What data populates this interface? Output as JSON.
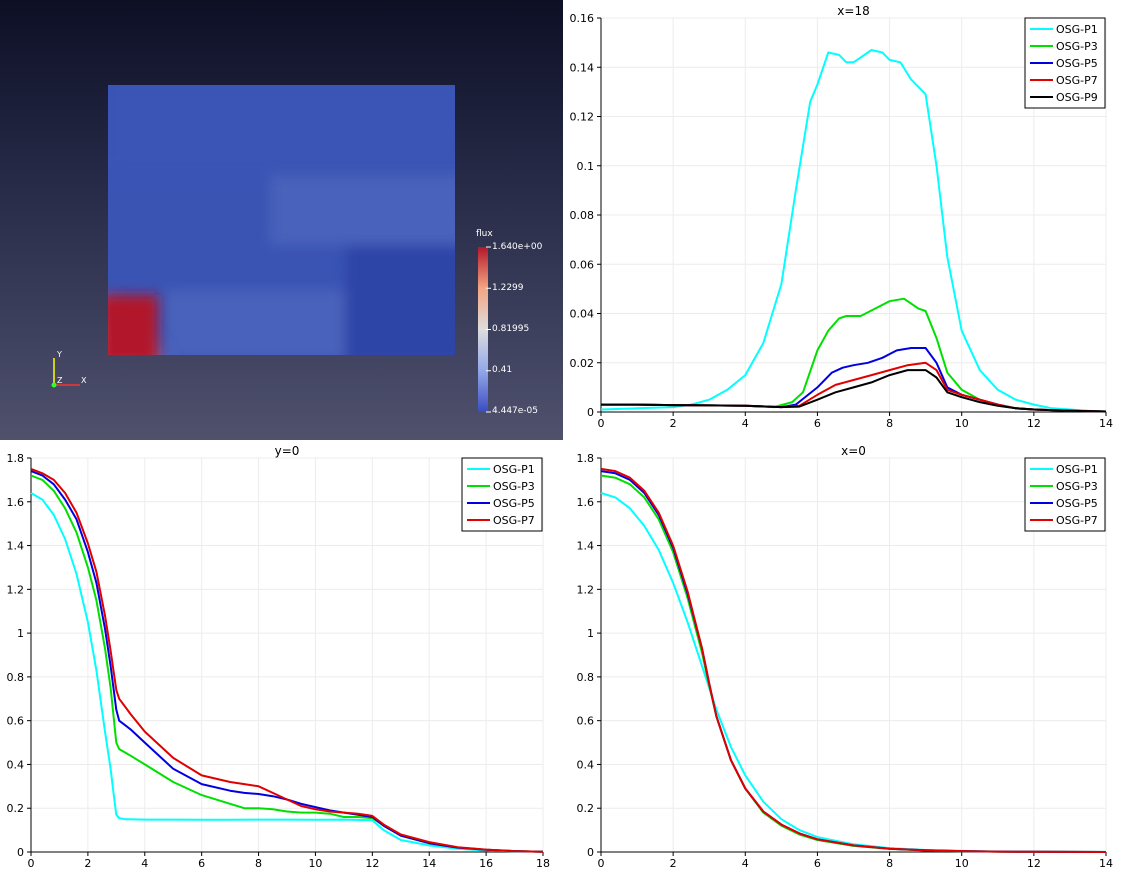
{
  "viewport": {
    "colorbar": {
      "title": "flux",
      "labels": [
        "1.640e+00",
        "1.2299",
        "0.81995",
        "0.41",
        "4.447e-05"
      ],
      "colors": [
        "#b2182b",
        "#f4a582",
        "#dddddd",
        "#92a8e8",
        "#3b4cc0"
      ]
    },
    "axes": {
      "y": "Y",
      "z": "Z",
      "x": "X"
    },
    "field": {
      "background": "#3a54b4",
      "colors": {
        "mid": "#4862bb",
        "upper": "#3a55b6",
        "dark": "#2f44a8",
        "hot": "#b2182b",
        "warm": "#e8c2ae"
      }
    }
  },
  "chart_data": [
    {
      "id": "tr",
      "type": "line",
      "title": "x=18",
      "xlim": [
        0,
        14
      ],
      "ylim": [
        0,
        0.16
      ],
      "xticks": [
        0,
        2,
        4,
        6,
        8,
        10,
        12,
        14
      ],
      "xtick_labels": [
        "0",
        "2",
        "4",
        "6",
        "8",
        "10",
        "12",
        "14"
      ],
      "yticks": [
        0,
        0.02,
        0.04,
        0.06,
        0.08,
        0.1,
        0.12,
        0.14,
        0.16
      ],
      "ytick_labels": [
        "0",
        "0.02",
        "0.04",
        "0.06",
        "0.08",
        "0.1",
        "0.12",
        "0.14",
        "0.16"
      ],
      "legend": "top-right",
      "grid": true,
      "series": [
        {
          "name": "OSG-P1",
          "color": "#00ffff",
          "x": [
            0,
            1,
            2,
            2.5,
            3,
            3.5,
            4,
            4.5,
            5,
            5.4,
            5.8,
            6,
            6.3,
            6.6,
            6.8,
            7,
            7.2,
            7.5,
            7.8,
            8,
            8.3,
            8.6,
            9,
            9.3,
            9.6,
            10,
            10.5,
            11,
            11.5,
            12,
            12.5,
            13,
            13.5,
            14
          ],
          "y": [
            0.001,
            0.0015,
            0.002,
            0.003,
            0.005,
            0.009,
            0.015,
            0.028,
            0.052,
            0.09,
            0.126,
            0.133,
            0.146,
            0.145,
            0.142,
            0.142,
            0.144,
            0.147,
            0.146,
            0.143,
            0.142,
            0.135,
            0.129,
            0.1,
            0.063,
            0.033,
            0.017,
            0.009,
            0.005,
            0.003,
            0.0015,
            0.001,
            0.0005,
            0.0002
          ]
        },
        {
          "name": "OSG-P3",
          "color": "#00e000",
          "x": [
            0,
            1,
            2,
            3,
            4,
            4.8,
            5.3,
            5.6,
            6,
            6.3,
            6.6,
            6.8,
            7.2,
            7.6,
            8,
            8.4,
            8.8,
            9,
            9.3,
            9.6,
            10,
            10.5,
            11,
            11.5,
            12,
            13,
            14
          ],
          "y": [
            0.003,
            0.003,
            0.0028,
            0.0027,
            0.0025,
            0.002,
            0.004,
            0.008,
            0.025,
            0.033,
            0.038,
            0.039,
            0.039,
            0.042,
            0.045,
            0.046,
            0.042,
            0.041,
            0.03,
            0.016,
            0.009,
            0.005,
            0.003,
            0.0015,
            0.001,
            0.0005,
            0.0002
          ]
        },
        {
          "name": "OSG-P5",
          "color": "#0000e0",
          "x": [
            0,
            1,
            2,
            3,
            4,
            5,
            5.4,
            6,
            6.4,
            6.7,
            7,
            7.4,
            7.8,
            8.2,
            8.6,
            9,
            9.3,
            9.6,
            10,
            10.5,
            11,
            11.5,
            12,
            13,
            14
          ],
          "y": [
            0.003,
            0.003,
            0.0028,
            0.0027,
            0.0025,
            0.002,
            0.003,
            0.01,
            0.016,
            0.018,
            0.019,
            0.02,
            0.022,
            0.025,
            0.026,
            0.026,
            0.02,
            0.01,
            0.007,
            0.005,
            0.003,
            0.0015,
            0.001,
            0.0005,
            0.0002
          ]
        },
        {
          "name": "OSG-P7",
          "color": "#e00000",
          "x": [
            0,
            1,
            2,
            3,
            4,
            5,
            5.5,
            6,
            6.5,
            7,
            7.5,
            8,
            8.5,
            9,
            9.3,
            9.6,
            10,
            10.5,
            11,
            11.5,
            12,
            13,
            14
          ],
          "y": [
            0.003,
            0.003,
            0.0028,
            0.0027,
            0.0025,
            0.002,
            0.0025,
            0.007,
            0.011,
            0.013,
            0.015,
            0.017,
            0.019,
            0.02,
            0.017,
            0.009,
            0.007,
            0.005,
            0.003,
            0.0015,
            0.001,
            0.0005,
            0.0002
          ]
        },
        {
          "name": "OSG-P9",
          "color": "#000000",
          "x": [
            0,
            1,
            2,
            3,
            4,
            5,
            5.5,
            6,
            6.5,
            7,
            7.5,
            8,
            8.5,
            9,
            9.3,
            9.6,
            10,
            10.5,
            11,
            11.5,
            12,
            13,
            14
          ],
          "y": [
            0.003,
            0.003,
            0.0028,
            0.0027,
            0.0025,
            0.002,
            0.0022,
            0.005,
            0.008,
            0.01,
            0.012,
            0.015,
            0.017,
            0.017,
            0.014,
            0.008,
            0.006,
            0.004,
            0.0025,
            0.0015,
            0.001,
            0.0005,
            0.0002
          ]
        }
      ]
    },
    {
      "id": "bl",
      "type": "line",
      "title": "y=0",
      "xlim": [
        0,
        18
      ],
      "ylim": [
        0,
        1.8
      ],
      "xticks": [
        0,
        2,
        4,
        6,
        8,
        10,
        12,
        14,
        16,
        18
      ],
      "xtick_labels": [
        "0",
        "2",
        "4",
        "6",
        "8",
        "10",
        "12",
        "14",
        "16",
        "18"
      ],
      "yticks": [
        0,
        0.2,
        0.4,
        0.6,
        0.8,
        1,
        1.2,
        1.4,
        1.6,
        1.8
      ],
      "ytick_labels": [
        "0",
        "0.2",
        "0.4",
        "0.6",
        "0.8",
        "1",
        "1.2",
        "1.4",
        "1.6",
        "1.8"
      ],
      "legend": "top-right",
      "grid": true,
      "series": [
        {
          "name": "OSG-P1",
          "color": "#00ffff",
          "x": [
            0,
            0.4,
            0.8,
            1.2,
            1.6,
            2,
            2.3,
            2.6,
            2.8,
            2.9,
            3.0,
            3.1,
            3.3,
            4,
            5,
            6,
            7,
            8,
            9,
            10,
            11,
            12,
            12.4,
            13,
            14,
            15,
            16,
            17,
            18
          ],
          "y": [
            1.64,
            1.61,
            1.54,
            1.43,
            1.27,
            1.05,
            0.83,
            0.55,
            0.38,
            0.27,
            0.17,
            0.155,
            0.15,
            0.148,
            0.148,
            0.147,
            0.147,
            0.148,
            0.148,
            0.147,
            0.148,
            0.145,
            0.1,
            0.055,
            0.03,
            0.015,
            0.007,
            0.003,
            0.001
          ]
        },
        {
          "name": "OSG-P3",
          "color": "#00e000",
          "x": [
            0,
            0.4,
            0.8,
            1.2,
            1.6,
            2,
            2.3,
            2.6,
            2.8,
            3.0,
            3.1,
            3.5,
            4,
            5,
            6,
            7,
            7.5,
            8,
            8.5,
            9,
            9.5,
            10,
            10.5,
            11,
            11.5,
            12,
            12.4,
            13,
            14,
            15,
            16,
            17,
            18
          ],
          "y": [
            1.72,
            1.7,
            1.65,
            1.57,
            1.46,
            1.3,
            1.15,
            0.93,
            0.75,
            0.5,
            0.47,
            0.44,
            0.4,
            0.32,
            0.26,
            0.22,
            0.2,
            0.2,
            0.195,
            0.185,
            0.18,
            0.18,
            0.175,
            0.16,
            0.16,
            0.155,
            0.12,
            0.075,
            0.04,
            0.02,
            0.01,
            0.004,
            0.001
          ]
        },
        {
          "name": "OSG-P5",
          "color": "#0000e0",
          "x": [
            0,
            0.4,
            0.8,
            1.2,
            1.6,
            2,
            2.3,
            2.6,
            2.8,
            3.0,
            3.1,
            3.5,
            4,
            5,
            6,
            7,
            7.5,
            8,
            8.5,
            9,
            9.5,
            10,
            10.5,
            11,
            11.5,
            12,
            12.4,
            13,
            14,
            15,
            16,
            17,
            18
          ],
          "y": [
            1.74,
            1.72,
            1.68,
            1.61,
            1.52,
            1.37,
            1.23,
            1.02,
            0.85,
            0.65,
            0.6,
            0.56,
            0.5,
            0.38,
            0.31,
            0.28,
            0.27,
            0.265,
            0.255,
            0.24,
            0.22,
            0.205,
            0.19,
            0.18,
            0.17,
            0.16,
            0.12,
            0.075,
            0.04,
            0.02,
            0.01,
            0.004,
            0.001
          ]
        },
        {
          "name": "OSG-P7",
          "color": "#e00000",
          "x": [
            0,
            0.4,
            0.8,
            1.2,
            1.6,
            2,
            2.3,
            2.6,
            2.8,
            3.0,
            3.1,
            3.5,
            4,
            5,
            6,
            7,
            7.5,
            8,
            8.5,
            9,
            9.5,
            10,
            10.5,
            11,
            11.5,
            12,
            12.4,
            13,
            14,
            15,
            16,
            17,
            18
          ],
          "y": [
            1.75,
            1.73,
            1.7,
            1.64,
            1.55,
            1.41,
            1.28,
            1.08,
            0.92,
            0.74,
            0.7,
            0.63,
            0.55,
            0.43,
            0.35,
            0.32,
            0.31,
            0.3,
            0.27,
            0.24,
            0.21,
            0.195,
            0.185,
            0.18,
            0.175,
            0.165,
            0.125,
            0.08,
            0.045,
            0.022,
            0.011,
            0.004,
            0.001
          ]
        }
      ]
    },
    {
      "id": "br",
      "type": "line",
      "title": "x=0",
      "xlim": [
        0,
        14
      ],
      "ylim": [
        0,
        1.8
      ],
      "xticks": [
        0,
        2,
        4,
        6,
        8,
        10,
        12,
        14
      ],
      "xtick_labels": [
        "0",
        "2",
        "4",
        "6",
        "8",
        "10",
        "12",
        "14"
      ],
      "yticks": [
        0,
        0.2,
        0.4,
        0.6,
        0.8,
        1,
        1.2,
        1.4,
        1.6,
        1.8
      ],
      "ytick_labels": [
        "0",
        "0.2",
        "0.4",
        "0.6",
        "0.8",
        "1",
        "1.2",
        "1.4",
        "1.6",
        "1.8"
      ],
      "legend": "top-right",
      "grid": true,
      "series": [
        {
          "name": "OSG-P1",
          "color": "#00ffff",
          "x": [
            0,
            0.4,
            0.8,
            1.2,
            1.6,
            2,
            2.4,
            2.8,
            3,
            3.2,
            3.6,
            4,
            4.5,
            5,
            5.5,
            6,
            7,
            8,
            9,
            10,
            11,
            12,
            13,
            14
          ],
          "y": [
            1.64,
            1.62,
            1.57,
            1.49,
            1.38,
            1.23,
            1.05,
            0.85,
            0.75,
            0.65,
            0.48,
            0.35,
            0.23,
            0.15,
            0.1,
            0.068,
            0.035,
            0.018,
            0.009,
            0.005,
            0.0025,
            0.0012,
            0.0006,
            0.0003
          ]
        },
        {
          "name": "OSG-P3",
          "color": "#00e000",
          "x": [
            0,
            0.4,
            0.8,
            1.2,
            1.6,
            2,
            2.4,
            2.8,
            3,
            3.2,
            3.6,
            4,
            4.5,
            5,
            5.5,
            6,
            7,
            8,
            9,
            10,
            11,
            12,
            13,
            14
          ],
          "y": [
            1.72,
            1.71,
            1.68,
            1.62,
            1.52,
            1.37,
            1.16,
            0.91,
            0.76,
            0.62,
            0.42,
            0.29,
            0.18,
            0.12,
            0.08,
            0.055,
            0.028,
            0.014,
            0.007,
            0.0035,
            0.0018,
            0.0009,
            0.0005,
            0.0002
          ]
        },
        {
          "name": "OSG-P5",
          "color": "#0000e0",
          "x": [
            0,
            0.4,
            0.8,
            1.2,
            1.6,
            2,
            2.4,
            2.8,
            3,
            3.2,
            3.6,
            4,
            4.5,
            5,
            5.5,
            6,
            7,
            8,
            9,
            10,
            11,
            12,
            13,
            14
          ],
          "y": [
            1.74,
            1.73,
            1.7,
            1.64,
            1.54,
            1.39,
            1.18,
            0.93,
            0.77,
            0.62,
            0.42,
            0.29,
            0.185,
            0.125,
            0.085,
            0.058,
            0.03,
            0.015,
            0.008,
            0.004,
            0.002,
            0.001,
            0.0005,
            0.0002
          ]
        },
        {
          "name": "OSG-P7",
          "color": "#e00000",
          "x": [
            0,
            0.4,
            0.8,
            1.2,
            1.6,
            2,
            2.4,
            2.8,
            3,
            3.2,
            3.6,
            4,
            4.5,
            5,
            5.5,
            6,
            7,
            8,
            9,
            10,
            11,
            12,
            13,
            14
          ],
          "y": [
            1.75,
            1.74,
            1.71,
            1.65,
            1.55,
            1.4,
            1.19,
            0.93,
            0.77,
            0.62,
            0.42,
            0.29,
            0.185,
            0.125,
            0.085,
            0.058,
            0.03,
            0.015,
            0.008,
            0.004,
            0.002,
            0.001,
            0.0005,
            0.0002
          ]
        }
      ]
    }
  ]
}
